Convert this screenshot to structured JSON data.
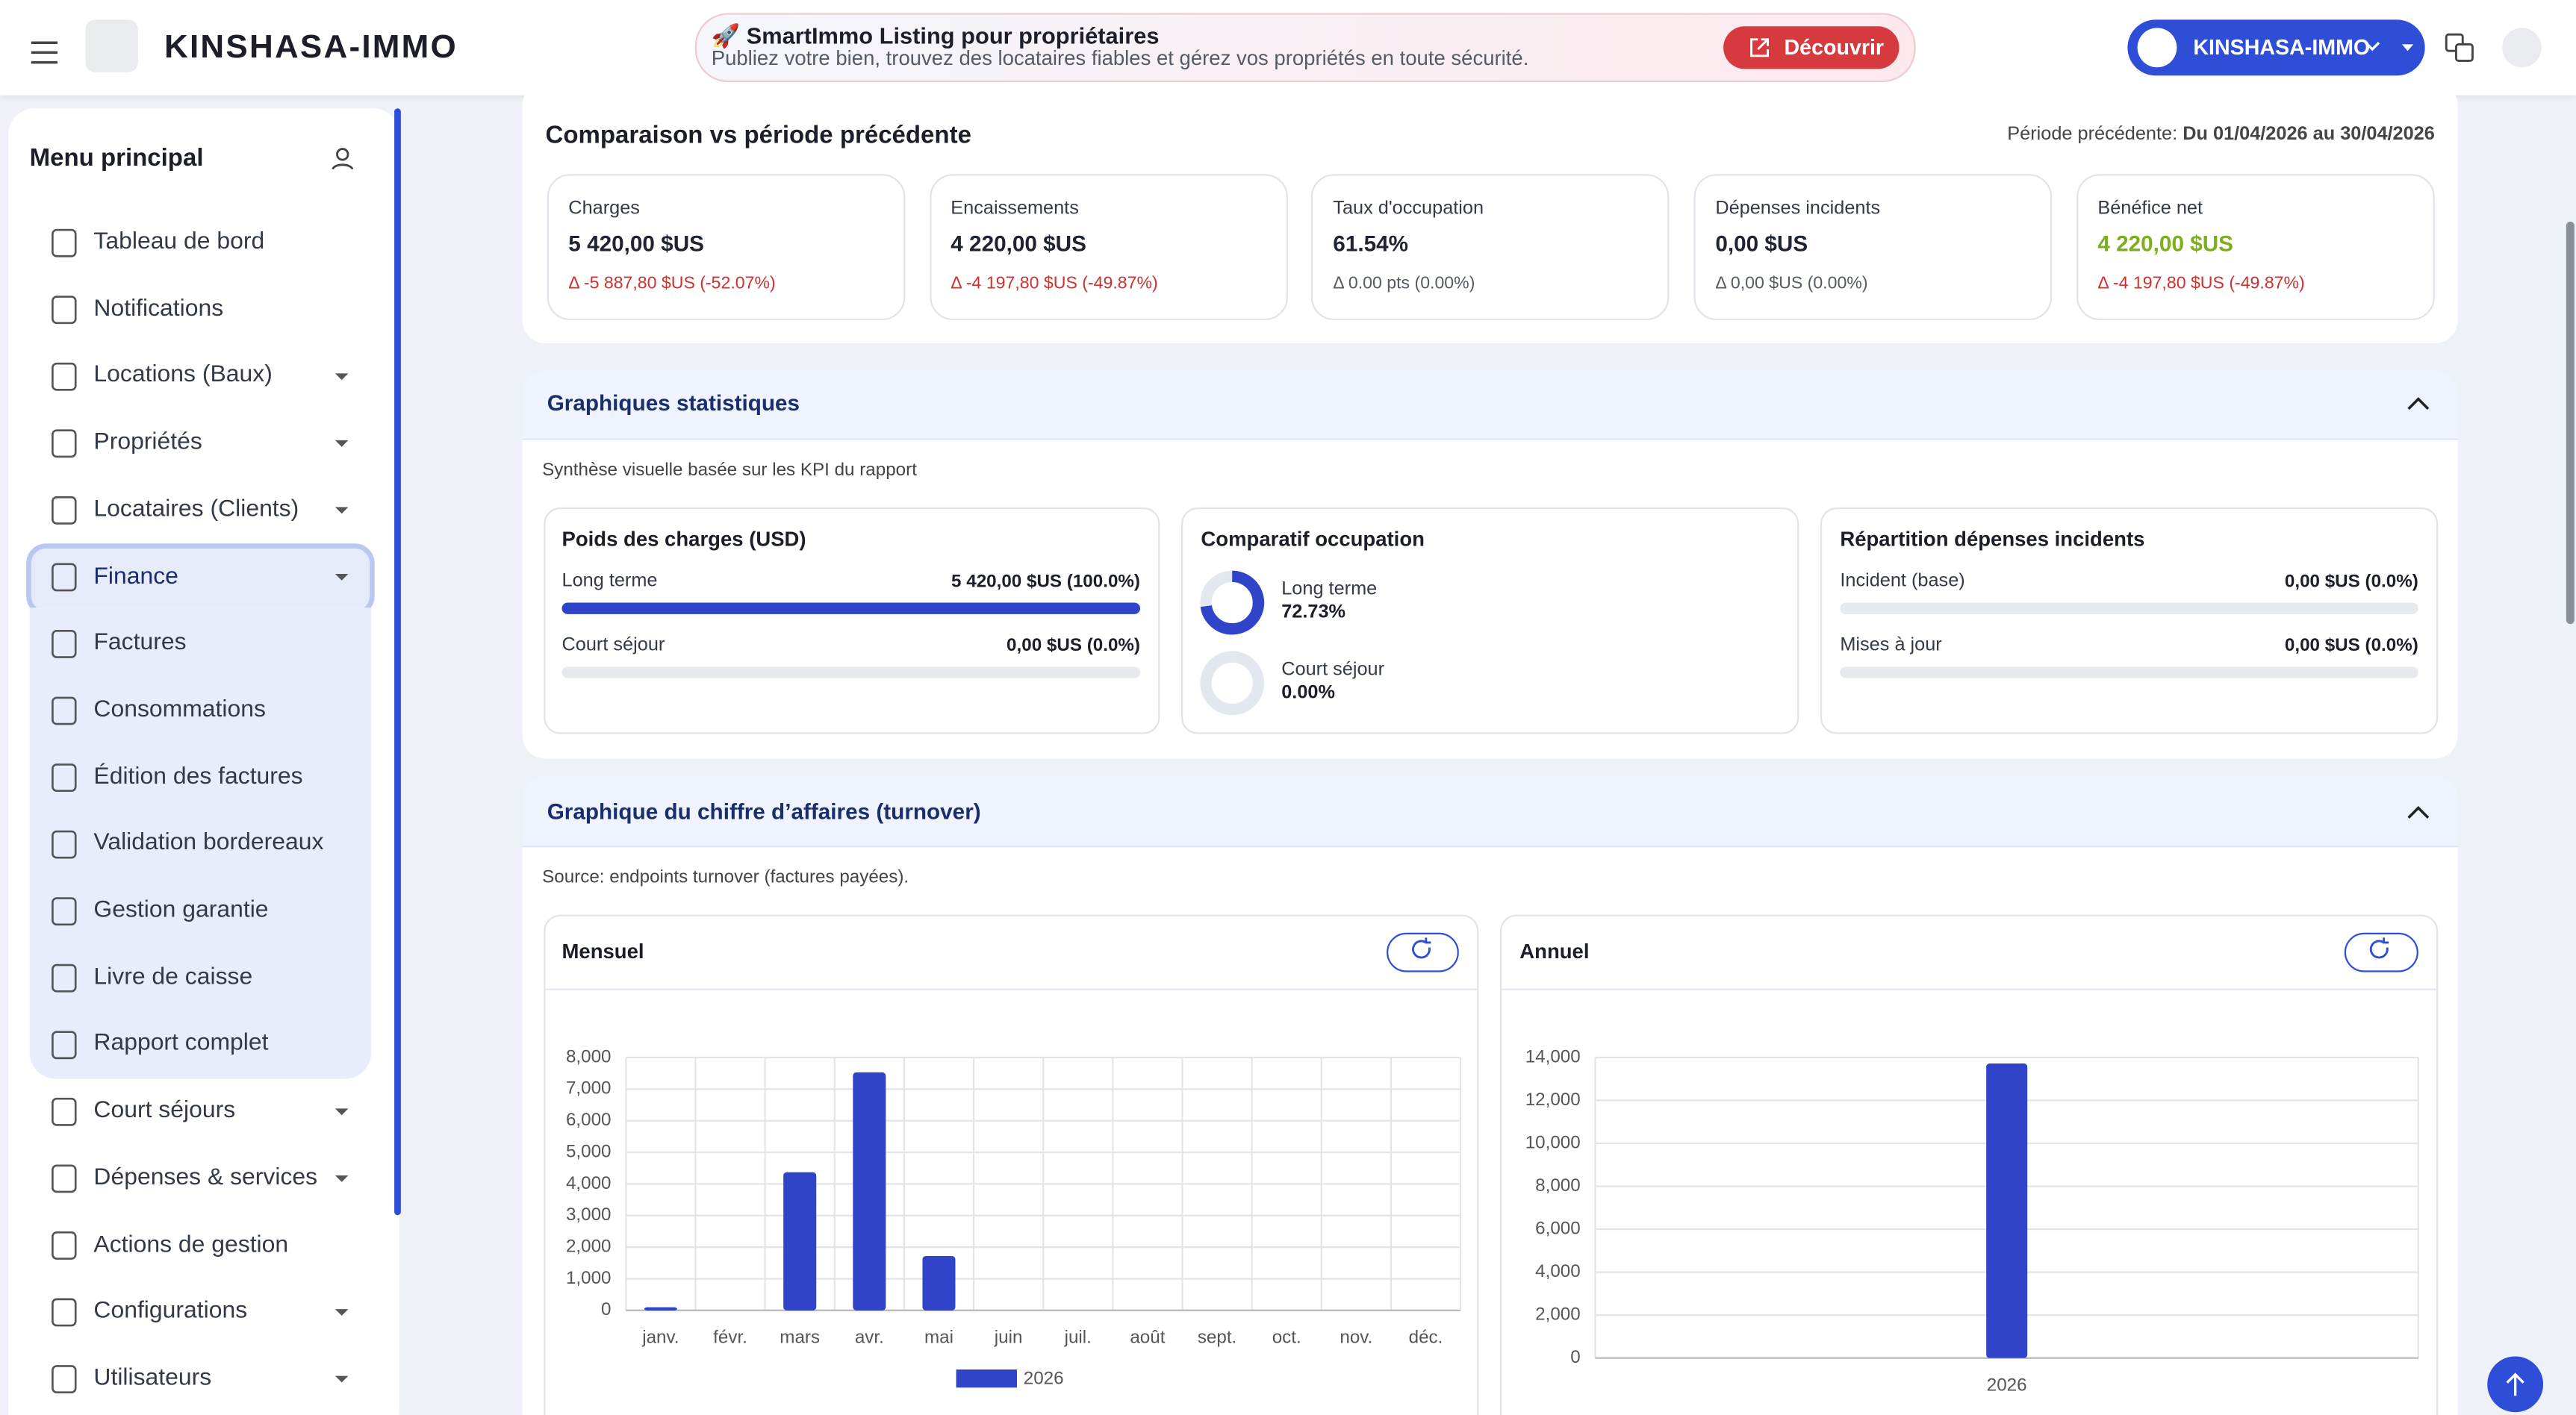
{
  "header": {
    "brand": "KINSHASA-IMMO",
    "banner_title": "🚀 SmartImmo Listing pour propriétaires",
    "banner_text": "Publiez votre bien, trouvez des locataires fiables et gérez vos propriétés en toute sécurité.",
    "banner_button": "Découvrir",
    "org_selector": "KINSHASA-IMMO"
  },
  "sidebar": {
    "title": "Menu principal",
    "items": [
      {
        "label": "Tableau de bord",
        "has_dropdown": false
      },
      {
        "label": "Notifications",
        "has_dropdown": false
      },
      {
        "label": "Locations (Baux)",
        "has_dropdown": true
      },
      {
        "label": "Propriétés",
        "has_dropdown": true
      },
      {
        "label": "Locataires (Clients)",
        "has_dropdown": true
      },
      {
        "label": "Finance",
        "has_dropdown": true,
        "active": true,
        "submenu": [
          "Factures",
          "Consommations",
          "Édition des factures",
          "Validation bordereaux",
          "Gestion garantie",
          "Livre de caisse",
          "Rapport complet"
        ]
      },
      {
        "label": "Court séjours",
        "has_dropdown": true
      },
      {
        "label": "Dépenses & services",
        "has_dropdown": true
      },
      {
        "label": "Actions de gestion",
        "has_dropdown": false
      },
      {
        "label": "Configurations",
        "has_dropdown": true
      },
      {
        "label": "Utilisateurs",
        "has_dropdown": true
      }
    ]
  },
  "comparison": {
    "title": "Comparaison vs période précédente",
    "period_label": "Période précédente:",
    "period_value": "Du 01/04/2026 au 30/04/2026",
    "cards": [
      {
        "label": "Charges",
        "value": "5 420,00 $US",
        "delta": "Δ -5 887,80 $US (-52.07%)",
        "value_color": "#1f2433",
        "delta_color": "#d0312d"
      },
      {
        "label": "Encaissements",
        "value": "4 220,00 $US",
        "delta": "Δ -4 197,80 $US (-49.87%)",
        "value_color": "#1f2433",
        "delta_color": "#d0312d"
      },
      {
        "label": "Taux d'occupation",
        "value": "61.54%",
        "delta": "Δ 0.00 pts (0.00%)",
        "value_color": "#1f2433",
        "delta_color": "#555b66"
      },
      {
        "label": "Dépenses incidents",
        "value": "0,00 $US",
        "delta": "Δ 0,00 $US (0.00%)",
        "value_color": "#1f2433",
        "delta_color": "#555b66"
      },
      {
        "label": "Bénéfice net",
        "value": "4 220,00 $US",
        "delta": "Δ -4 197,80 $US (-49.87%)",
        "value_color": "#7cae1f",
        "delta_color": "#d0312d"
      }
    ]
  },
  "stats": {
    "title": "Graphiques statistiques",
    "subtitle": "Synthèse visuelle basée sur les KPI du rapport",
    "charges": {
      "title": "Poids des charges (USD)",
      "rows": [
        {
          "label": "Long terme",
          "value_label": "5 420,00 $US (100.0%)",
          "share": 100
        },
        {
          "label": "Court séjour",
          "value_label": "0,00 $US (0.0%)",
          "share": 0
        }
      ]
    },
    "occupation": {
      "title": "Comparatif occupation",
      "rows": [
        {
          "label": "Long terme",
          "value": 72.73,
          "value_label": "72.73%"
        },
        {
          "label": "Court séjour",
          "value": 0,
          "value_label": "0.00%"
        }
      ]
    },
    "incidents": {
      "title": "Répartition dépenses incidents",
      "rows": [
        {
          "label": "Incident (base)",
          "value_label": "0,00 $US (0.0%)",
          "share": 0
        },
        {
          "label": "Mises à jour",
          "value_label": "0,00 $US (0.0%)",
          "share": 0
        }
      ]
    }
  },
  "turnover": {
    "title": "Graphique du chiffre d’affaires (turnover)",
    "source": "Source: endpoints turnover (factures payées).",
    "monthly": {
      "type": "bar",
      "title": "Mensuel",
      "categories": [
        "janv.",
        "févr.",
        "mars",
        "avr.",
        "mai",
        "juin",
        "juil.",
        "août",
        "sept.",
        "oct.",
        "nov.",
        "déc."
      ],
      "series": [
        {
          "name": "2026",
          "color": "#2f44c9",
          "values": [
            100,
            0,
            4370,
            7530,
            1720,
            0,
            0,
            0,
            0,
            0,
            0,
            0
          ]
        }
      ],
      "ylim": [
        0,
        8000
      ],
      "yticks": [
        0,
        {
          "value": 1000,
          "label": "1,000"
        },
        {
          "value": 2000,
          "label": "2,000"
        },
        {
          "value": 3000,
          "label": "3,000"
        },
        {
          "value": 4000,
          "label": "4,000"
        },
        {
          "value": 5000,
          "label": "5,000"
        },
        {
          "value": 6000,
          "label": "6,000"
        },
        {
          "value": 7000,
          "label": "7,000"
        },
        {
          "value": 8000,
          "label": "8,000"
        }
      ],
      "grid": true
    },
    "annual": {
      "type": "bar",
      "title": "Annuel",
      "categories": [
        "2026"
      ],
      "values": [
        13720
      ],
      "color": "#2f44c9",
      "ylim": [
        0,
        14000
      ],
      "yticks": [
        0,
        {
          "value": 2000,
          "label": "2,000"
        },
        {
          "value": 4000,
          "label": "4,000"
        },
        {
          "value": 6000,
          "label": "6,000"
        },
        {
          "value": 8000,
          "label": "8,000"
        },
        {
          "value": 10000,
          "label": "10,000"
        },
        {
          "value": 12000,
          "label": "12,000"
        },
        {
          "value": 14000,
          "label": "14,000"
        }
      ],
      "grid": true
    }
  }
}
